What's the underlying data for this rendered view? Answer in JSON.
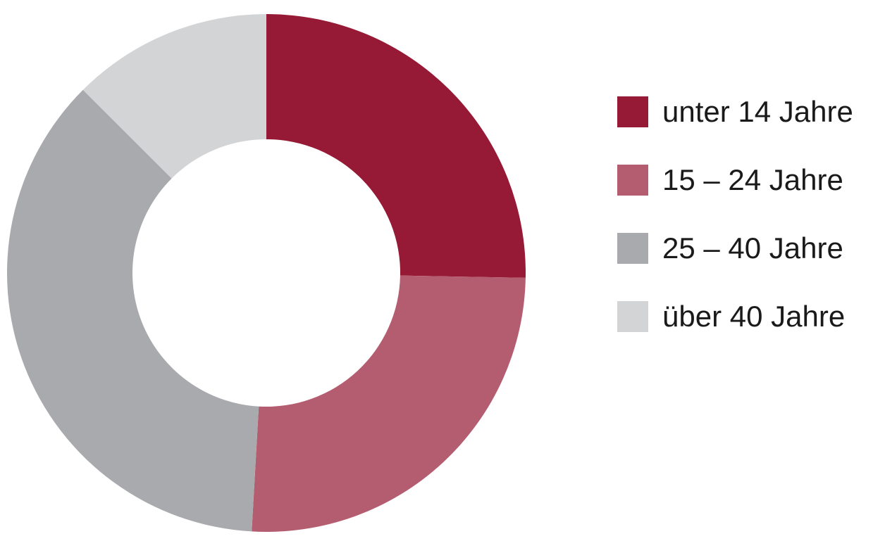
{
  "chart_data": {
    "type": "pie",
    "donut": true,
    "legend_position": "right",
    "series": [
      {
        "name": "unter 14 Jahre",
        "value": 25.3,
        "color": "#961a35"
      },
      {
        "name": "15 – 24 Jahre",
        "value": 25.6,
        "color": "#b55d70"
      },
      {
        "name": "25 – 40 Jahre",
        "value": 36.6,
        "color": "#a9aaad"
      },
      {
        "name": "über 40 Jahre",
        "value": 12.5,
        "color": "#d3d4d6"
      }
    ]
  }
}
